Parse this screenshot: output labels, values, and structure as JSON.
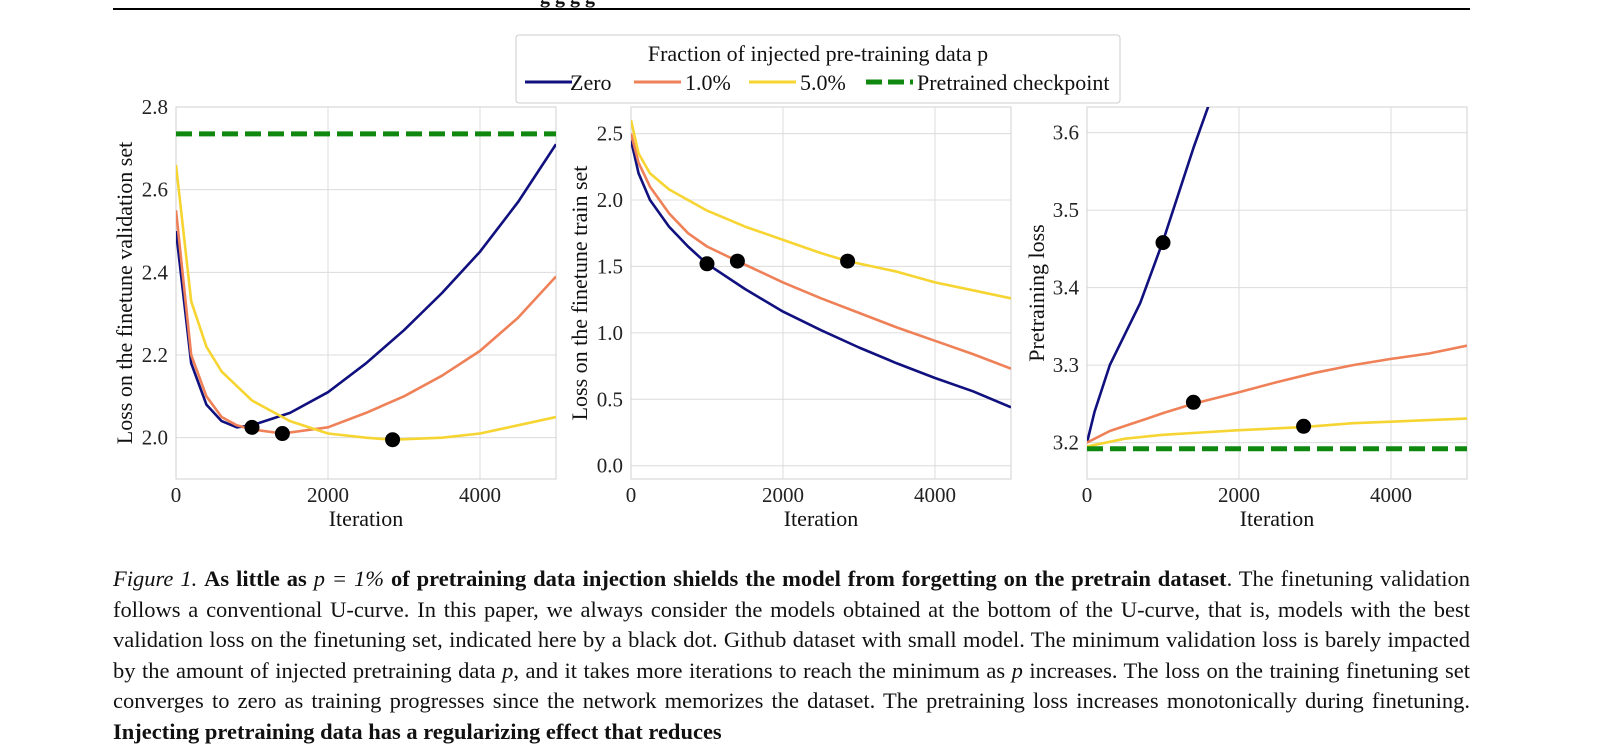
{
  "header_fragment": "g                       g     g     g",
  "legend": {
    "title": "Fraction of injected pre-training data p",
    "entries": [
      {
        "label": "Zero",
        "color": "#10107f",
        "style": "solid"
      },
      {
        "label": "1.0%",
        "color": "#ef8159",
        "style": "solid"
      },
      {
        "label": "5.0%",
        "color": "#f6d532",
        "style": "solid"
      },
      {
        "label": "Pretrained checkpoint",
        "color": "#108810",
        "style": "dashed"
      }
    ]
  },
  "chart_data": [
    {
      "type": "line",
      "title": "",
      "xlabel": "Iteration",
      "ylabel": "Loss on the finetune validation set",
      "xlim": [
        0,
        5000
      ],
      "ylim": [
        1.9,
        2.8
      ],
      "xticks": [
        0,
        2000,
        4000
      ],
      "yticks": [
        2.0,
        2.2,
        2.4,
        2.6,
        2.8
      ],
      "ytick_labels": [
        "2.0",
        "2.2",
        "2.4",
        "2.6",
        "2.8"
      ],
      "series": [
        {
          "name": "Zero",
          "color": "#10107f",
          "x": [
            0,
            200,
            400,
            600,
            800,
            1000,
            1500,
            2000,
            2500,
            3000,
            3500,
            4000,
            4500,
            5000
          ],
          "y": [
            2.5,
            2.18,
            2.08,
            2.04,
            2.025,
            2.03,
            2.06,
            2.11,
            2.18,
            2.26,
            2.35,
            2.45,
            2.57,
            2.71
          ]
        },
        {
          "name": "1.0%",
          "color": "#ef8159",
          "x": [
            0,
            200,
            400,
            600,
            800,
            1000,
            1400,
            2000,
            2500,
            3000,
            3500,
            4000,
            4500,
            5000
          ],
          "y": [
            2.55,
            2.2,
            2.1,
            2.05,
            2.03,
            2.02,
            2.01,
            2.025,
            2.06,
            2.1,
            2.15,
            2.21,
            2.29,
            2.39
          ]
        },
        {
          "name": "5.0%",
          "color": "#f6d532",
          "x": [
            0,
            200,
            400,
            600,
            1000,
            1500,
            2000,
            2500,
            2850,
            3500,
            4000,
            4500,
            5000
          ],
          "y": [
            2.66,
            2.33,
            2.22,
            2.16,
            2.09,
            2.04,
            2.01,
            2.0,
            1.995,
            2.0,
            2.01,
            2.03,
            2.05
          ]
        },
        {
          "name": "Pretrained checkpoint",
          "color": "#108810",
          "dashed": true,
          "x": [
            0,
            5000
          ],
          "y": [
            2.735,
            2.735
          ]
        }
      ],
      "markers": [
        {
          "x": 1000,
          "y": 2.025
        },
        {
          "x": 1400,
          "y": 2.01
        },
        {
          "x": 2850,
          "y": 1.995
        }
      ]
    },
    {
      "type": "line",
      "title": "",
      "xlabel": "Iteration",
      "ylabel": "Loss on the finetune train set",
      "xlim": [
        0,
        5000
      ],
      "ylim": [
        -0.1,
        2.7
      ],
      "xticks": [
        0,
        2000,
        4000
      ],
      "yticks": [
        0.0,
        0.5,
        1.0,
        1.5,
        2.0,
        2.5
      ],
      "ytick_labels": [
        "0.0",
        "0.5",
        "1.0",
        "1.5",
        "2.0",
        "2.5"
      ],
      "series": [
        {
          "name": "Zero",
          "color": "#10107f",
          "x": [
            0,
            100,
            250,
            500,
            750,
            1000,
            1500,
            2000,
            2500,
            3000,
            3500,
            4000,
            4500,
            5000
          ],
          "y": [
            2.45,
            2.2,
            2.0,
            1.8,
            1.65,
            1.52,
            1.33,
            1.16,
            1.02,
            0.89,
            0.77,
            0.66,
            0.56,
            0.44
          ]
        },
        {
          "name": "1.0%",
          "color": "#ef8159",
          "x": [
            0,
            100,
            250,
            500,
            750,
            1000,
            1400,
            2000,
            2500,
            3000,
            3500,
            4000,
            4500,
            5000
          ],
          "y": [
            2.5,
            2.28,
            2.1,
            1.9,
            1.75,
            1.65,
            1.54,
            1.38,
            1.26,
            1.15,
            1.04,
            0.94,
            0.84,
            0.73
          ]
        },
        {
          "name": "5.0%",
          "color": "#f6d532",
          "x": [
            0,
            100,
            250,
            500,
            1000,
            1500,
            2000,
            2500,
            2850,
            3500,
            4000,
            4500,
            5000
          ],
          "y": [
            2.6,
            2.35,
            2.2,
            2.08,
            1.92,
            1.8,
            1.7,
            1.6,
            1.54,
            1.46,
            1.38,
            1.32,
            1.26
          ]
        }
      ],
      "markers": [
        {
          "x": 1000,
          "y": 1.52
        },
        {
          "x": 1400,
          "y": 1.54
        },
        {
          "x": 2850,
          "y": 1.54
        }
      ]
    },
    {
      "type": "line",
      "title": "",
      "xlabel": "Iteration",
      "ylabel": "Pretraining loss",
      "xlim": [
        0,
        5000
      ],
      "ylim": [
        3.153,
        3.633
      ],
      "xticks": [
        0,
        2000,
        4000
      ],
      "yticks": [
        3.2,
        3.3,
        3.4,
        3.5,
        3.6
      ],
      "ytick_labels": [
        "3.2",
        "3.3",
        "3.4",
        "3.5",
        "3.6"
      ],
      "series": [
        {
          "name": "Zero",
          "color": "#10107f",
          "x": [
            0,
            100,
            300,
            500,
            700,
            1000,
            1200,
            1400,
            1600
          ],
          "y": [
            3.2,
            3.24,
            3.3,
            3.34,
            3.38,
            3.46,
            3.52,
            3.58,
            3.635
          ]
        },
        {
          "name": "1.0%",
          "color": "#ef8159",
          "x": [
            0,
            300,
            700,
            1000,
            1400,
            2000,
            2500,
            3000,
            3500,
            4000,
            4500,
            5000
          ],
          "y": [
            3.2,
            3.215,
            3.228,
            3.238,
            3.25,
            3.265,
            3.278,
            3.29,
            3.3,
            3.308,
            3.315,
            3.325
          ]
        },
        {
          "name": "5.0%",
          "color": "#f6d532",
          "x": [
            0,
            500,
            1000,
            1500,
            2000,
            2850,
            3500,
            4000,
            4500,
            5000
          ],
          "y": [
            3.195,
            3.205,
            3.21,
            3.213,
            3.216,
            3.22,
            3.225,
            3.227,
            3.229,
            3.231
          ]
        },
        {
          "name": "Pretrained checkpoint",
          "color": "#108810",
          "dashed": true,
          "x": [
            0,
            5000
          ],
          "y": [
            3.192,
            3.192
          ]
        }
      ],
      "markers": [
        {
          "x": 1000,
          "y": 3.458
        },
        {
          "x": 1400,
          "y": 3.252
        },
        {
          "x": 2850,
          "y": 3.221
        }
      ]
    }
  ],
  "caption": {
    "fig_label": "Figure 1.",
    "bold_part1": "As little as",
    "math_p_eq": "p = 1%",
    "bold_part2": "of pretraining data injection shields the model from forgetting on the pretrain dataset",
    "text1": ". The finetuning validation follows a conventional U-curve. In this paper, we always consider the models obtained at the bottom of the U-curve, that is, models with the best validation loss on the finetuning set, indicated here by a black dot. Github dataset with small model. The minimum validation loss is barely impacted by the amount of injected pretraining data",
    "math_p1": "p",
    "text2": ", and it takes more iterations to reach the minimum as",
    "math_p2": "p",
    "text3": "increases. The loss on the training finetuning set converges to zero as training progresses since the network memorizes the dataset. The pretraining loss increases monotonically during finetuning.",
    "bold_part3": "Injecting pretraining data has a regularizing effect that reduces"
  }
}
